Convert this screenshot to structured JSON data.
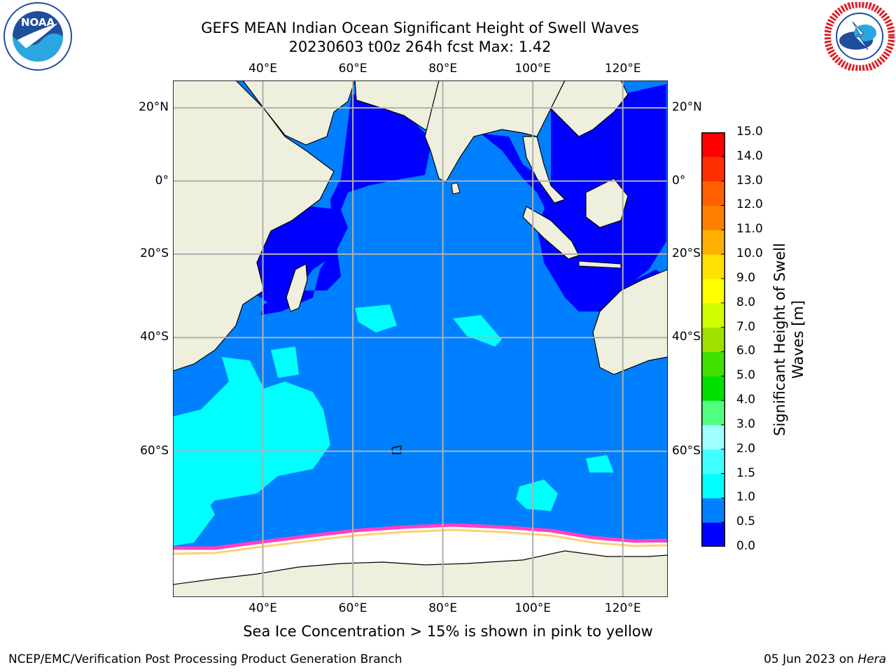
{
  "title": {
    "line1": "GEFS MEAN Indian Ocean Significant Height of Swell Waves",
    "line2": "20230603 t00z 264h fcst   Max: 1.42"
  },
  "logos": {
    "left": {
      "icon": "noaa-logo",
      "text": "NOAA"
    },
    "right": {
      "icon": "nws-logo",
      "text": "NATIONAL WEATHER SERVICE"
    }
  },
  "map": {
    "lon_labels": [
      "40°E",
      "60°E",
      "80°E",
      "100°E",
      "120°E"
    ],
    "lat_labels": [
      "20°N",
      "0°",
      "20°S",
      "40°S",
      "60°S"
    ],
    "lon_values": [
      40,
      60,
      80,
      100,
      120
    ],
    "lat_values": [
      20,
      0,
      -20,
      -40,
      -60
    ],
    "extent": {
      "lon": [
        20,
        130
      ],
      "lat": [
        -75,
        27
      ]
    },
    "projection": "mercator",
    "gridlines": true,
    "land_color": "#efefde",
    "ocean_base_color": "#0080ff"
  },
  "colorbar": {
    "label": "Significant Height of Swell Waves [m]",
    "levels": [
      "0.0",
      "0.5",
      "1.0",
      "1.5",
      "2.0",
      "3.0",
      "4.0",
      "5.0",
      "6.0",
      "7.0",
      "8.0",
      "9.0",
      "10.0",
      "11.0",
      "12.0",
      "13.0",
      "14.0",
      "15.0"
    ],
    "colors": [
      "#0000ff",
      "#0080ff",
      "#00ffff",
      "#40ffff",
      "#a0ffff",
      "#50ff80",
      "#00e000",
      "#40e000",
      "#a0e000",
      "#d0ff00",
      "#ffff00",
      "#ffe000",
      "#ffb000",
      "#ff8000",
      "#ff6000",
      "#ff3000",
      "#ff0000"
    ]
  },
  "caption": "Sea Ice Concentration > 15% is shown in pink to yellow",
  "footer": {
    "left": "NCEP/EMC/Verification Post Processing Product Generation Branch",
    "right_date": "05 Jun 2023 on",
    "right_host": "Hera"
  }
}
